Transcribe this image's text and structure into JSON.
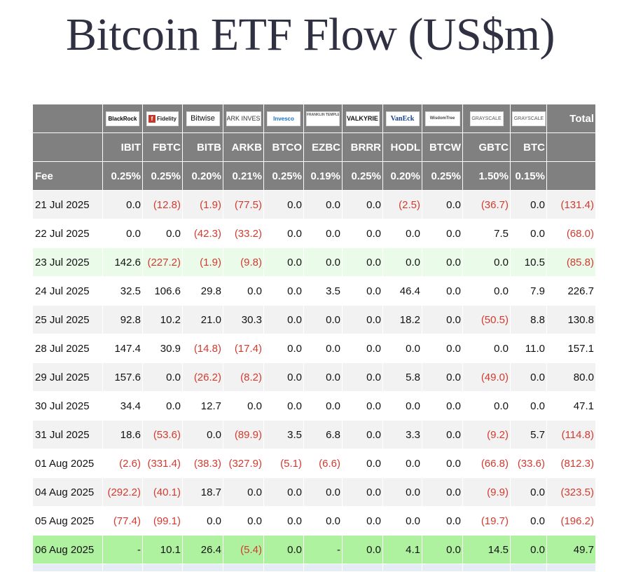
{
  "title": "Bitcoin ETF Flow (US$m)",
  "colors": {
    "header_bg": "#808080",
    "negative": "#d33a2f",
    "row_highlight_light": "#eafbea",
    "row_highlight": "#aef2a0",
    "row_shade": "#f2f2f2"
  },
  "issuers": [
    {
      "ticker": "IBIT",
      "logo_text": "BlackRock",
      "fee": "0.25%"
    },
    {
      "ticker": "FBTC",
      "logo_text": "Fidelity",
      "fee": "0.25%"
    },
    {
      "ticker": "BITB",
      "logo_text": "Bitwise",
      "fee": "0.20%"
    },
    {
      "ticker": "ARKB",
      "logo_text": "ARK INVEST",
      "fee": "0.21%"
    },
    {
      "ticker": "BTCO",
      "logo_text": "Invesco",
      "fee": "0.25%"
    },
    {
      "ticker": "EZBC",
      "logo_text": "FRANKLIN TEMPLETON",
      "fee": "0.19%"
    },
    {
      "ticker": "BRRR",
      "logo_text": "VALKYRIE",
      "fee": "0.25%"
    },
    {
      "ticker": "HODL",
      "logo_text": "VanEck",
      "fee": "0.20%"
    },
    {
      "ticker": "BTCW",
      "logo_text": "WisdomTree",
      "fee": "0.25%"
    },
    {
      "ticker": "GBTC",
      "logo_text": "GRAYSCALE",
      "fee": "1.50%"
    },
    {
      "ticker": "BTC",
      "logo_text": "GRAYSCALE",
      "fee": "0.15%"
    }
  ],
  "header": {
    "total_label": "Total",
    "fee_label": "Fee"
  },
  "rows": [
    {
      "date": "21 Jul 2025",
      "values": [
        "0.0",
        "(12.8)",
        "(1.9)",
        "(77.5)",
        "0.0",
        "0.0",
        "0.0",
        "(2.5)",
        "0.0",
        "(36.7)",
        "0.0"
      ],
      "total": "(131.4)",
      "style": "shade"
    },
    {
      "date": "22 Jul 2025",
      "values": [
        "0.0",
        "0.0",
        "(42.3)",
        "(33.2)",
        "0.0",
        "0.0",
        "0.0",
        "0.0",
        "0.0",
        "7.5",
        "0.0"
      ],
      "total": "(68.0)",
      "style": "plain"
    },
    {
      "date": "23 Jul 2025",
      "values": [
        "142.6",
        "(227.2)",
        "(1.9)",
        "(9.8)",
        "0.0",
        "0.0",
        "0.0",
        "0.0",
        "0.0",
        "0.0",
        "10.5"
      ],
      "total": "(85.8)",
      "style": "highlight-light"
    },
    {
      "date": "24 Jul 2025",
      "values": [
        "32.5",
        "106.6",
        "29.8",
        "0.0",
        "0.0",
        "3.5",
        "0.0",
        "46.4",
        "0.0",
        "0.0",
        "7.9"
      ],
      "total": "226.7",
      "style": "plain"
    },
    {
      "date": "25 Jul 2025",
      "values": [
        "92.8",
        "10.2",
        "21.0",
        "30.3",
        "0.0",
        "0.0",
        "0.0",
        "18.2",
        "0.0",
        "(50.5)",
        "8.8"
      ],
      "total": "130.8",
      "style": "shade"
    },
    {
      "date": "28 Jul 2025",
      "values": [
        "147.4",
        "30.9",
        "(14.8)",
        "(17.4)",
        "0.0",
        "0.0",
        "0.0",
        "0.0",
        "0.0",
        "0.0",
        "11.0"
      ],
      "total": "157.1",
      "style": "plain"
    },
    {
      "date": "29 Jul 2025",
      "values": [
        "157.6",
        "0.0",
        "(26.2)",
        "(8.2)",
        "0.0",
        "0.0",
        "0.0",
        "5.8",
        "0.0",
        "(49.0)",
        "0.0"
      ],
      "total": "80.0",
      "style": "shade"
    },
    {
      "date": "30 Jul 2025",
      "values": [
        "34.4",
        "0.0",
        "12.7",
        "0.0",
        "0.0",
        "0.0",
        "0.0",
        "0.0",
        "0.0",
        "0.0",
        "0.0"
      ],
      "total": "47.1",
      "style": "plain"
    },
    {
      "date": "31 Jul 2025",
      "values": [
        "18.6",
        "(53.6)",
        "0.0",
        "(89.9)",
        "3.5",
        "6.8",
        "0.0",
        "3.3",
        "0.0",
        "(9.2)",
        "5.7"
      ],
      "total": "(114.8)",
      "style": "shade"
    },
    {
      "date": "01 Aug 2025",
      "values": [
        "(2.6)",
        "(331.4)",
        "(38.3)",
        "(327.9)",
        "(5.1)",
        "(6.6)",
        "0.0",
        "0.0",
        "0.0",
        "(66.8)",
        "(33.6)"
      ],
      "total": "(812.3)",
      "style": "plain"
    },
    {
      "date": "04 Aug 2025",
      "values": [
        "(292.2)",
        "(40.1)",
        "18.7",
        "0.0",
        "0.0",
        "0.0",
        "0.0",
        "0.0",
        "0.0",
        "(9.9)",
        "0.0"
      ],
      "total": "(323.5)",
      "style": "shade"
    },
    {
      "date": "05 Aug 2025",
      "values": [
        "(77.4)",
        "(99.1)",
        "0.0",
        "0.0",
        "0.0",
        "0.0",
        "0.0",
        "0.0",
        "0.0",
        "(19.7)",
        "0.0"
      ],
      "total": "(196.2)",
      "style": "plain"
    },
    {
      "date": "06 Aug 2025",
      "values": [
        "-",
        "10.1",
        "26.4",
        "(5.4)",
        "0.0",
        "-",
        "0.0",
        "4.1",
        "0.0",
        "14.5",
        "0.0"
      ],
      "total": "49.7",
      "style": "highlight"
    }
  ]
}
